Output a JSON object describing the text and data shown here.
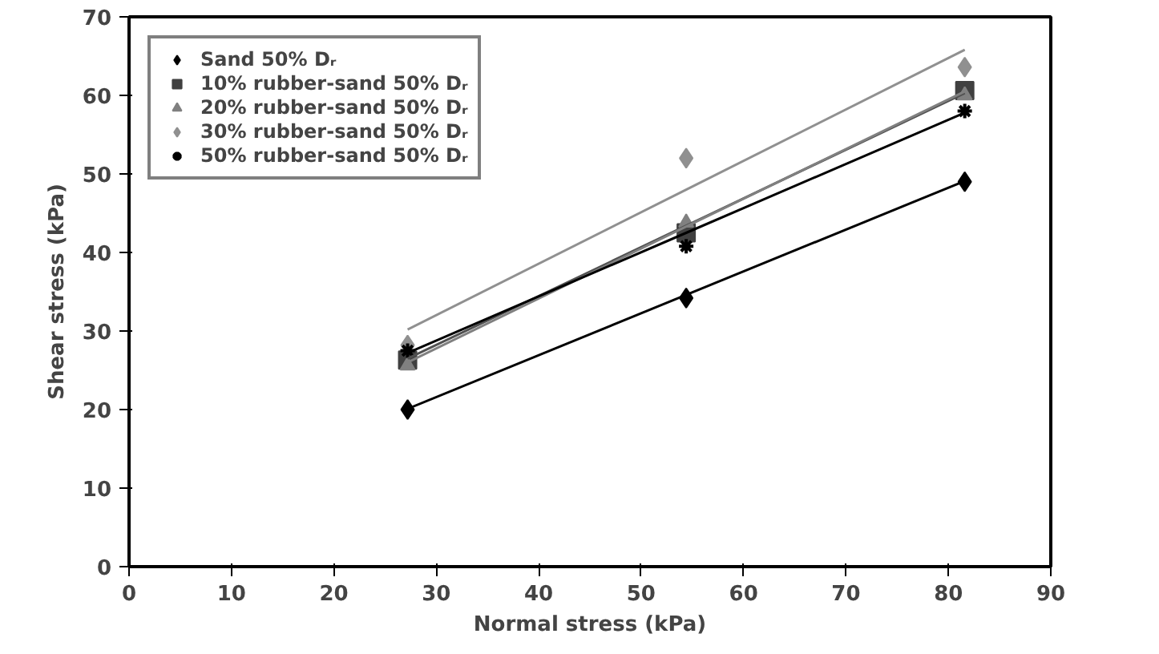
{
  "chart_data": {
    "type": "scatter",
    "xlabel": "Normal stress (kPa)",
    "ylabel": "Shear stress (kPa)",
    "x": [
      27.2,
      54.4,
      81.6
    ],
    "xlim": [
      0,
      90
    ],
    "xticks": [
      0,
      10,
      20,
      30,
      40,
      50,
      60,
      70,
      80,
      90
    ],
    "ylim": [
      0,
      70
    ],
    "yticks": [
      0,
      10,
      20,
      30,
      40,
      50,
      60,
      70
    ],
    "grid": false,
    "legend": "top left",
    "series": [
      {
        "name": "Sand 50% Dᵣ",
        "color": "#000000",
        "marker": "diamond",
        "values": [
          20,
          34.2,
          49
        ]
      },
      {
        "name": "10% rubber-sand 50% Dᵣ",
        "color": "#404040",
        "marker": "square",
        "values": [
          26.3,
          42.5,
          60.6
        ]
      },
      {
        "name": "20% rubber-sand 50% Dᵣ",
        "color": "#808080",
        "marker": "triangle",
        "values": [
          25.6,
          43.8,
          60
        ]
      },
      {
        "name": "30% rubber-sand 50% Dᵣ",
        "color": "#909090",
        "marker": "diamond",
        "values": [
          28.2,
          52,
          63.6
        ]
      },
      {
        "name": "50% rubber-sand 50% Dᵣ",
        "color": "#000000",
        "marker": "cross",
        "values": [
          27.5,
          40.8,
          58
        ]
      },
      {
        "type": "line",
        "color": "#000000",
        "values": [
          20.1,
          34.6,
          49.1
        ]
      },
      {
        "type": "line",
        "color": "#505050",
        "values": [
          26.5,
          43.4,
          60.3
        ]
      },
      {
        "type": "line",
        "color": "#808080",
        "values": [
          26,
          43.3,
          60.5
        ]
      },
      {
        "type": "line",
        "color": "#909090",
        "values": [
          30.2,
          48,
          65.8
        ]
      },
      {
        "type": "line",
        "color": "#000000",
        "values": [
          27.2,
          42.5,
          57.8
        ]
      }
    ]
  }
}
